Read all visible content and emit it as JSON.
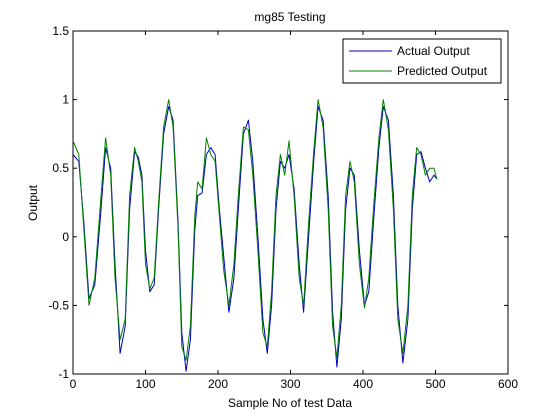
{
  "chart_data": {
    "type": "line",
    "title": "mg85 Testing",
    "xlabel": "Sample No of test Data",
    "ylabel": "Output",
    "xlim": [
      0,
      600
    ],
    "ylim": [
      -1,
      1.5
    ],
    "xticks": [
      0,
      100,
      200,
      300,
      400,
      500,
      600
    ],
    "yticks": [
      -1,
      -0.5,
      0,
      0.5,
      1,
      1.5
    ],
    "xtick_labels": [
      "0",
      "100",
      "200",
      "300",
      "400",
      "500",
      "600"
    ],
    "ytick_labels": [
      "-1",
      "-0.5",
      "0",
      "0.5",
      "1",
      "1.5"
    ],
    "grid": false,
    "legend_position": "top-right",
    "series": [
      {
        "name": "Actual Output",
        "color": "#0000bf",
        "x": [
          0,
          8,
          15,
          22,
          30,
          38,
          45,
          52,
          58,
          65,
          72,
          78,
          85,
          90,
          95,
          100,
          106,
          112,
          118,
          125,
          132,
          138,
          145,
          150,
          156,
          162,
          168,
          172,
          178,
          184,
          190,
          196,
          202,
          208,
          215,
          222,
          228,
          235,
          242,
          248,
          255,
          262,
          268,
          274,
          280,
          286,
          292,
          298,
          305,
          312,
          318,
          325,
          332,
          338,
          345,
          352,
          358,
          364,
          370,
          376,
          382,
          388,
          395,
          402,
          408,
          415,
          422,
          428,
          435,
          442,
          448,
          455,
          462,
          468,
          474,
          480,
          486,
          492,
          498,
          502
        ],
        "y": [
          0.6,
          0.55,
          0.1,
          -0.45,
          -0.35,
          0.15,
          0.65,
          0.5,
          -0.2,
          -0.85,
          -0.65,
          0.2,
          0.62,
          0.58,
          0.45,
          -0.1,
          -0.4,
          -0.35,
          0.2,
          0.75,
          0.95,
          0.85,
          0.1,
          -0.7,
          -0.98,
          -0.75,
          0.05,
          0.3,
          0.32,
          0.6,
          0.65,
          0.6,
          0.2,
          -0.15,
          -0.55,
          -0.3,
          0.2,
          0.75,
          0.85,
          0.55,
          0.0,
          -0.6,
          -0.85,
          -0.5,
          0.2,
          0.55,
          0.5,
          0.6,
          0.35,
          -0.2,
          -0.55,
          0.0,
          0.55,
          0.95,
          0.85,
          0.3,
          -0.55,
          -0.95,
          -0.6,
          0.2,
          0.5,
          0.45,
          -0.1,
          -0.5,
          -0.4,
          0.15,
          0.65,
          0.95,
          0.85,
          0.3,
          -0.5,
          -0.92,
          -0.6,
          0.2,
          0.6,
          0.62,
          0.5,
          0.4,
          0.45,
          0.42
        ]
      },
      {
        "name": "Predicted Output",
        "color": "#008000",
        "x": [
          0,
          8,
          15,
          22,
          30,
          38,
          45,
          52,
          58,
          65,
          72,
          78,
          85,
          90,
          95,
          100,
          106,
          112,
          118,
          125,
          132,
          138,
          145,
          150,
          156,
          162,
          168,
          172,
          178,
          184,
          190,
          196,
          202,
          208,
          215,
          222,
          228,
          235,
          242,
          248,
          255,
          262,
          268,
          274,
          280,
          286,
          292,
          298,
          305,
          312,
          318,
          325,
          332,
          338,
          345,
          352,
          358,
          364,
          370,
          376,
          382,
          388,
          395,
          402,
          408,
          415,
          422,
          428,
          435,
          442,
          448,
          455,
          462,
          468,
          474,
          480,
          486,
          492,
          498,
          502
        ],
        "y": [
          0.7,
          0.6,
          0.05,
          -0.5,
          -0.3,
          0.25,
          0.72,
          0.45,
          -0.3,
          -0.75,
          -0.6,
          0.3,
          0.65,
          0.55,
          0.4,
          -0.2,
          -0.38,
          -0.3,
          0.25,
          0.8,
          1.0,
          0.8,
          0.05,
          -0.8,
          -0.9,
          -0.65,
          0.15,
          0.4,
          0.35,
          0.72,
          0.6,
          0.55,
          0.15,
          -0.25,
          -0.5,
          -0.2,
          0.3,
          0.8,
          0.78,
          0.45,
          -0.1,
          -0.7,
          -0.8,
          -0.4,
          0.3,
          0.6,
          0.45,
          0.7,
          0.3,
          -0.3,
          -0.5,
          0.1,
          0.62,
          1.0,
          0.8,
          0.2,
          -0.65,
          -0.88,
          -0.5,
          0.3,
          0.55,
          0.4,
          -0.2,
          -0.52,
          -0.3,
          0.25,
          0.72,
          1.0,
          0.78,
          0.2,
          -0.6,
          -0.85,
          -0.5,
          0.3,
          0.65,
          0.6,
          0.45,
          0.5,
          0.5,
          0.42
        ]
      }
    ]
  }
}
